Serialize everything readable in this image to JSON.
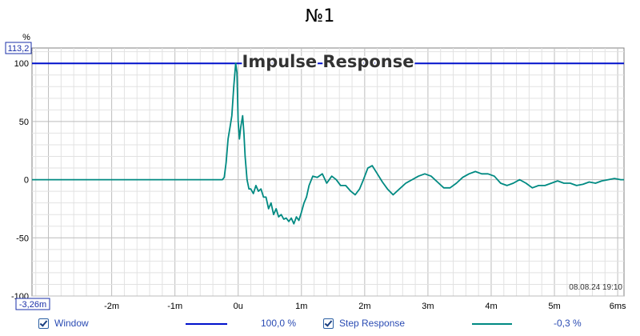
{
  "title": "№1",
  "chart_data": {
    "type": "line",
    "title": "Impulse Response",
    "ylabel": "%",
    "xlim": [
      -3.26,
      6.1
    ],
    "ylim": [
      -100,
      113.2
    ],
    "y_top_readout": "113,2",
    "x_left_readout": "-3,26m",
    "yticks": [
      100,
      50,
      0,
      -50,
      -100
    ],
    "ytick_labels": [
      "100",
      "50",
      "0",
      "-50",
      "-100"
    ],
    "xticks": [
      -2,
      -1,
      0,
      1,
      2,
      3,
      4,
      5,
      6
    ],
    "xtick_labels": [
      "-2m",
      "-1m",
      "0u",
      "1m",
      "2m",
      "3m",
      "4m",
      "5m",
      "6ms"
    ],
    "grid": true,
    "timestamp": "08.08.24 19:10",
    "series": [
      {
        "name": "Window",
        "color": "#0010cc",
        "legend_value": "100,0 %",
        "x": [
          -3.26,
          6.1
        ],
        "y": [
          100,
          100
        ]
      },
      {
        "name": "Step Response",
        "color": "#008a82",
        "legend_value": "-0,3 %",
        "x": [
          -3.26,
          -2.7,
          -2.0,
          -1.0,
          -0.25,
          -0.22,
          -0.19,
          -0.16,
          -0.13,
          -0.1,
          -0.07,
          -0.04,
          -0.02,
          0.0,
          0.02,
          0.04,
          0.07,
          0.09,
          0.11,
          0.14,
          0.17,
          0.2,
          0.24,
          0.28,
          0.32,
          0.36,
          0.4,
          0.44,
          0.48,
          0.52,
          0.56,
          0.6,
          0.64,
          0.68,
          0.72,
          0.76,
          0.8,
          0.84,
          0.88,
          0.92,
          0.96,
          1.0,
          1.04,
          1.08,
          1.12,
          1.18,
          1.25,
          1.33,
          1.4,
          1.48,
          1.55,
          1.62,
          1.7,
          1.78,
          1.85,
          1.92,
          1.98,
          2.05,
          2.12,
          2.2,
          2.28,
          2.36,
          2.45,
          2.55,
          2.65,
          2.75,
          2.85,
          2.95,
          3.05,
          3.15,
          3.25,
          3.35,
          3.45,
          3.55,
          3.65,
          3.75,
          3.85,
          3.95,
          4.05,
          4.15,
          4.25,
          4.35,
          4.45,
          4.55,
          4.65,
          4.75,
          4.85,
          4.95,
          5.05,
          5.15,
          5.25,
          5.35,
          5.45,
          5.55,
          5.65,
          5.75,
          5.85,
          5.95,
          6.05,
          6.1
        ],
        "y": [
          0,
          0,
          0,
          0,
          0,
          2,
          15,
          35,
          45,
          55,
          80,
          100,
          92,
          50,
          35,
          45,
          55,
          40,
          20,
          0,
          -8,
          -8,
          -12,
          -5,
          -10,
          -8,
          -15,
          -15,
          -25,
          -20,
          -30,
          -25,
          -32,
          -30,
          -34,
          -33,
          -36,
          -33,
          -38,
          -32,
          -35,
          -28,
          -20,
          -15,
          -5,
          3,
          2,
          5,
          -3,
          3,
          0,
          -5,
          -5,
          -10,
          -13,
          -8,
          0,
          10,
          12,
          5,
          -2,
          -8,
          -13,
          -8,
          -3,
          0,
          3,
          5,
          3,
          -2,
          -7,
          -7,
          -3,
          2,
          5,
          7,
          5,
          5,
          3,
          -3,
          -5,
          -3,
          0,
          -3,
          -7,
          -5,
          -5,
          -3,
          -1,
          -3,
          -3,
          -5,
          -4,
          -2,
          -3,
          -1,
          0,
          1,
          0,
          0
        ]
      }
    ],
    "legend_placement": "bottom"
  }
}
